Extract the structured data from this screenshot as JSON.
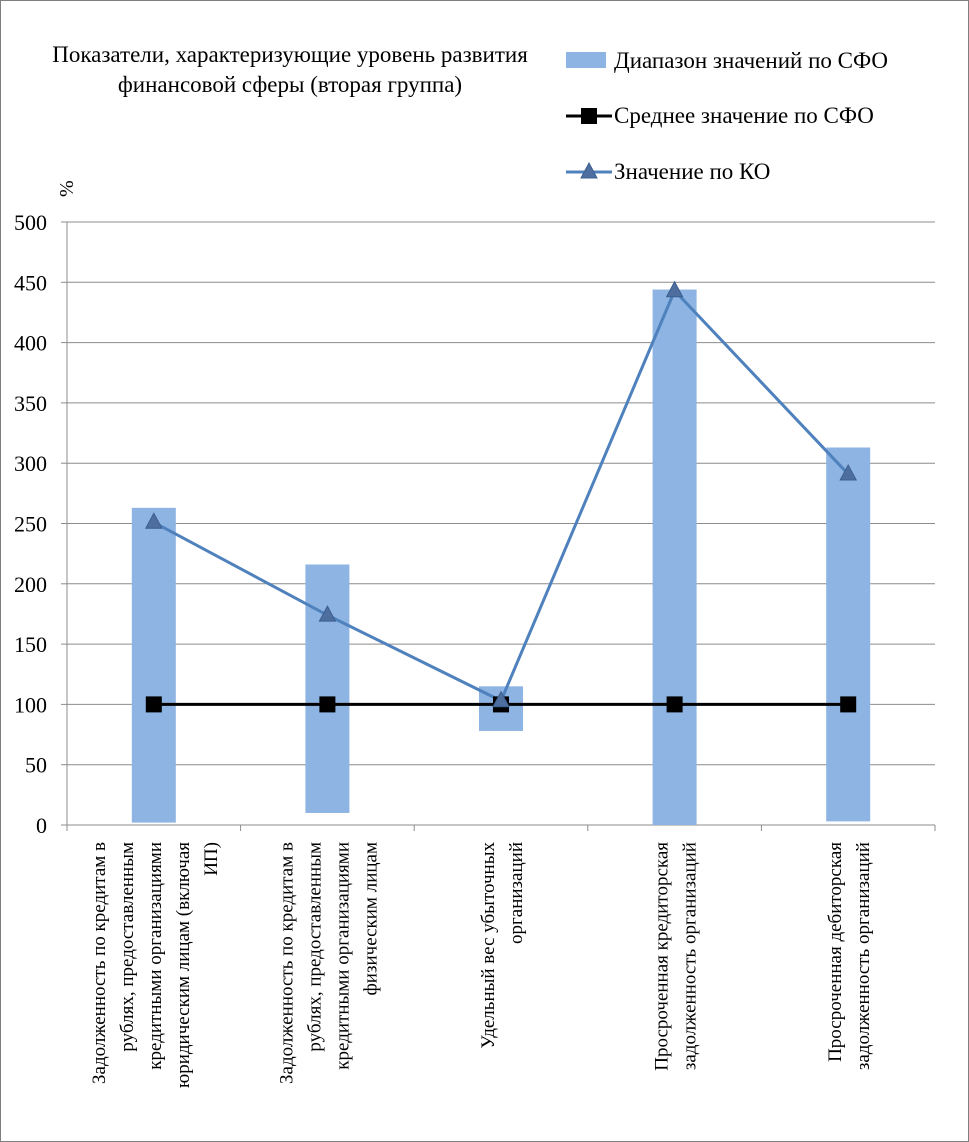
{
  "chart_data": {
    "type": "bar",
    "title": "Показатели, характеризующие уровень развития финансовой сферы (вторая группа)",
    "ylabel": "%",
    "ylim": [
      0,
      500
    ],
    "yticks": [
      0,
      50,
      100,
      150,
      200,
      250,
      300,
      350,
      400,
      450,
      500
    ],
    "grid": true,
    "legend_position": "top-right",
    "categories": [
      [
        "Задолженность по кредитам в",
        "рублях, предоставленным",
        "кредитными организациями",
        "юридическим лицам (включая",
        "ИП)"
      ],
      [
        "Задолженность по кредитам в",
        "рублях, предоставленным",
        "кредитными организациями",
        "физическим лицам"
      ],
      [
        "Удельный вес убыточных",
        "организаций"
      ],
      [
        "Просроченная кредиторская",
        "задолженность организаций"
      ],
      [
        "Просроченная дебиторская",
        "задолженность организаций"
      ]
    ],
    "series": [
      {
        "name": "Диапазон значений по СФО",
        "kind": "range-bar",
        "color": "#8eb4e3",
        "low": [
          2,
          10,
          78,
          0,
          3
        ],
        "high": [
          263,
          216,
          115,
          444,
          313
        ]
      },
      {
        "name": "Среднее значение по СФО",
        "kind": "line",
        "marker": "square",
        "color": "#000000",
        "values": [
          100,
          100,
          100,
          100,
          100
        ]
      },
      {
        "name": "Значение по КО",
        "kind": "line",
        "marker": "triangle",
        "color": "#4f81bd",
        "values": [
          251,
          174,
          103,
          443,
          291
        ]
      }
    ]
  }
}
